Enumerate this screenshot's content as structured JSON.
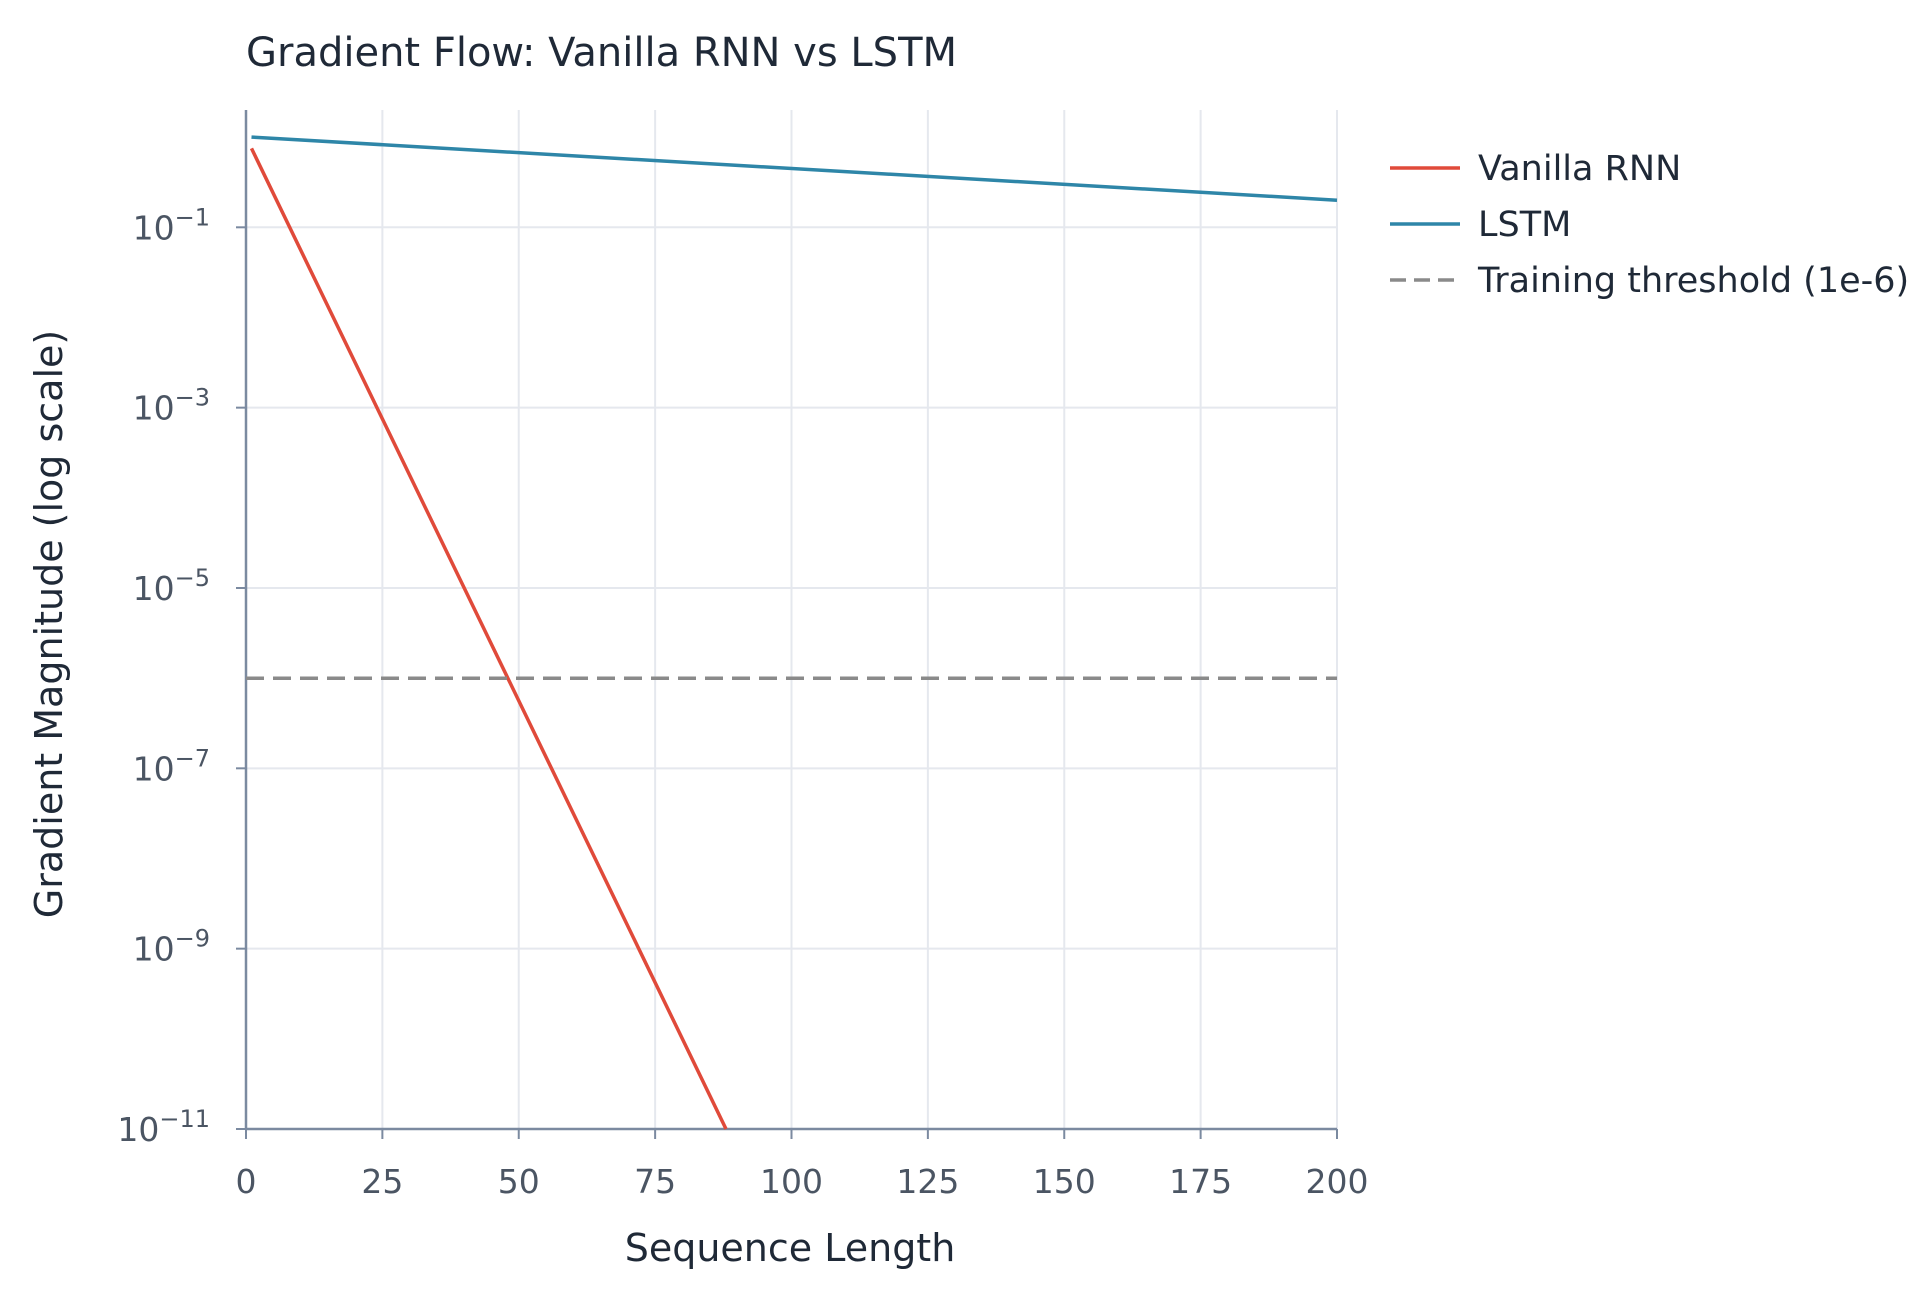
{
  "chart_data": {
    "type": "line",
    "title": "Gradient Flow: Vanilla RNN vs LSTM",
    "xlabel": "Sequence Length",
    "ylabel": "Gradient Magnitude (log scale)",
    "xlim": [
      0,
      200
    ],
    "ylim": [
      1e-11,
      2
    ],
    "yscale": "log",
    "grid": true,
    "legend_position": "outside-top-right",
    "x_ticks": [
      0,
      25,
      50,
      75,
      100,
      125,
      150,
      175,
      200
    ],
    "y_ticks": [
      {
        "exp": -1,
        "base": "10",
        "sup": "−1"
      },
      {
        "exp": -3,
        "base": "10",
        "sup": "−3"
      },
      {
        "exp": -5,
        "base": "10",
        "sup": "−5"
      },
      {
        "exp": -7,
        "base": "10",
        "sup": "−7"
      },
      {
        "exp": -9,
        "base": "10",
        "sup": "−9"
      },
      {
        "exp": -11,
        "base": "10",
        "sup": "−11"
      }
    ],
    "series": [
      {
        "name": "Vanilla RNN",
        "color": "#e04a3a",
        "style": "solid",
        "x": [
          1,
          88
        ],
        "y": [
          0.75,
          1e-11
        ]
      },
      {
        "name": "LSTM",
        "color": "#2e86a8",
        "style": "solid",
        "x": [
          1,
          200
        ],
        "y": [
          1.0,
          0.2
        ]
      },
      {
        "name": "Training threshold (1e-6)",
        "color": "#8a8a8a",
        "style": "dashed",
        "x": [
          0,
          200
        ],
        "y": [
          1e-06,
          1e-06
        ]
      }
    ]
  }
}
